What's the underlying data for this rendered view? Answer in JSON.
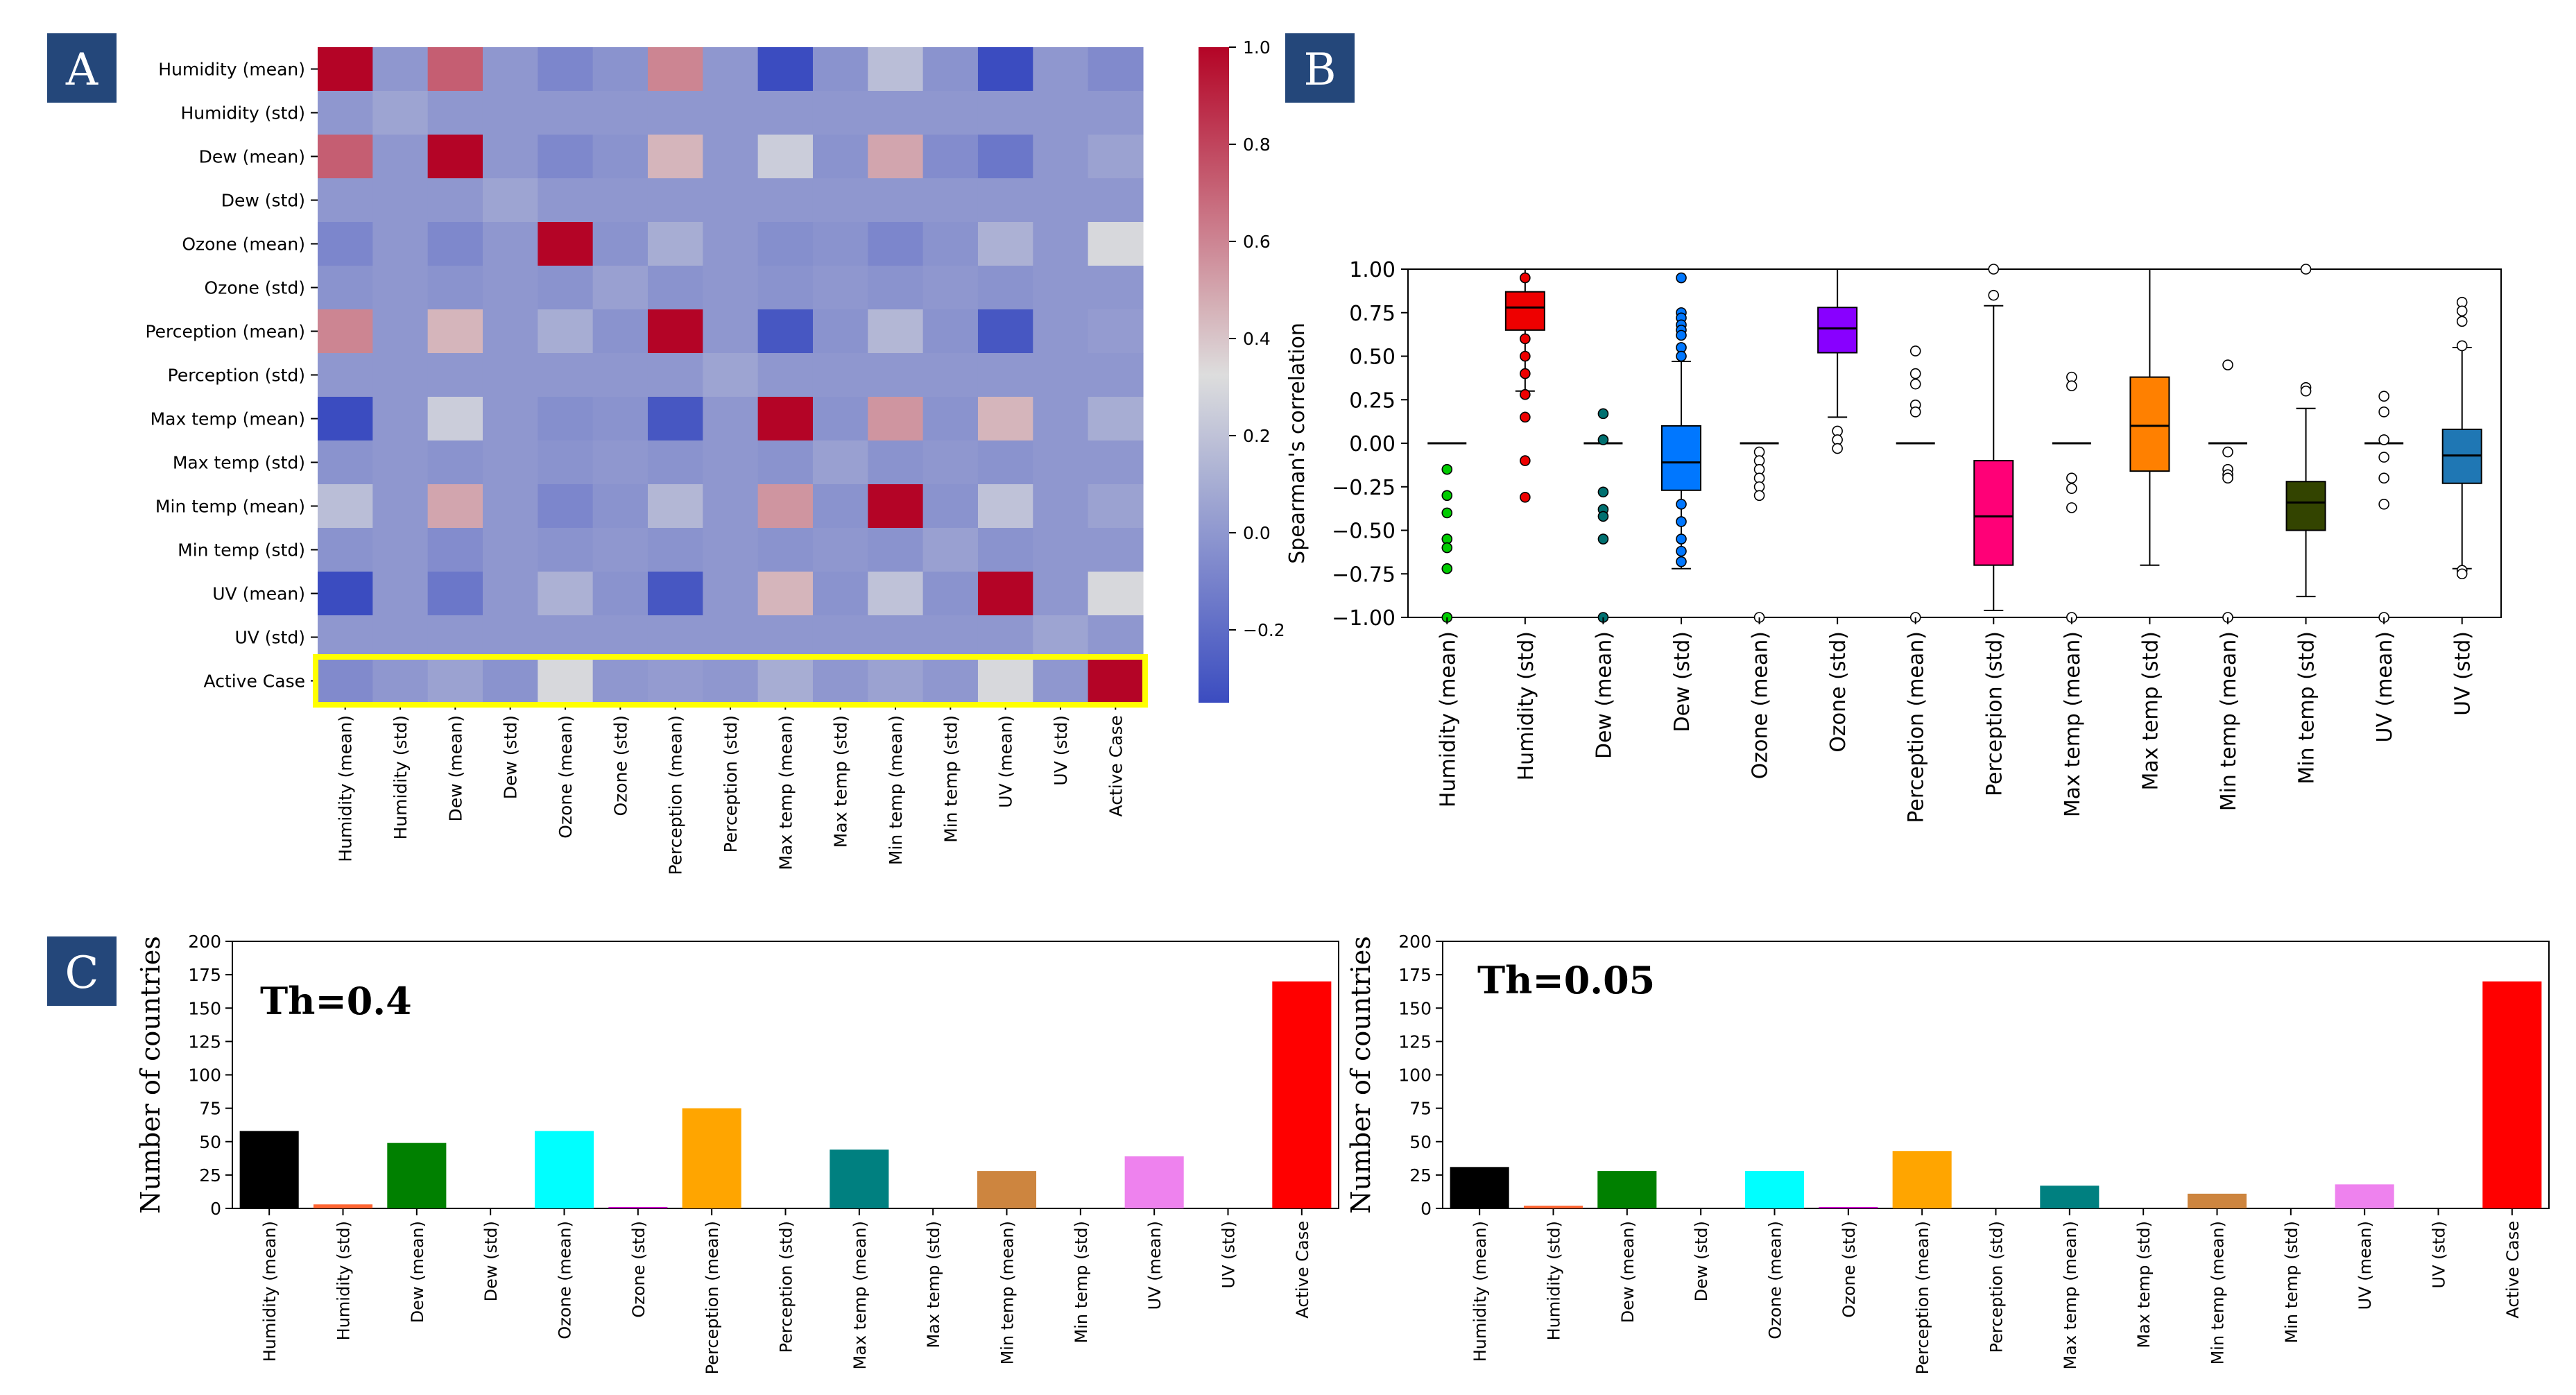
{
  "panel_labels": {
    "a": "A",
    "b": "B",
    "c": "C"
  },
  "colors": {
    "panel_label_bg": "#24477a",
    "highlight_box": "#ffff00",
    "heatmap_low": "#3b4cc0",
    "heatmap_mid": "#dddddd",
    "heatmap_high": "#b40426",
    "box_outlier_default": "#ffffff"
  },
  "chart_data": [
    {
      "id": "heatmap",
      "type": "heatmap",
      "title": "",
      "rows": [
        "Humidity (mean)",
        "Humidity (std)",
        "Dew (mean)",
        "Dew (std)",
        "Ozone (mean)",
        "Ozone (std)",
        "Perception (mean)",
        "Perception (std)",
        "Max temp (mean)",
        "Max temp (std)",
        "Min temp (mean)",
        "Min temp (std)",
        "UV (mean)",
        "UV (std)",
        "Active Case"
      ],
      "columns": [
        "Humidity (mean)",
        "Humidity (std)",
        "Dew (mean)",
        "Dew (std)",
        "Ozone (mean)",
        "Ozone (std)",
        "Perception (mean)",
        "Perception (std)",
        "Max temp (mean)",
        "Max temp (std)",
        "Min temp (mean)",
        "Min temp (std)",
        "UV (mean)",
        "UV (std)",
        "Active Case"
      ],
      "values": [
        [
          1.0,
          0.0,
          0.72,
          0.0,
          -0.08,
          -0.02,
          0.6,
          0.0,
          -0.35,
          -0.02,
          0.18,
          -0.02,
          -0.35,
          0.0,
          -0.06
        ],
        [
          0.0,
          0.06,
          0.0,
          0.0,
          0.0,
          0.0,
          0.0,
          0.0,
          0.0,
          0.0,
          0.0,
          0.0,
          0.0,
          0.0,
          0.0
        ],
        [
          0.72,
          0.0,
          1.0,
          0.0,
          -0.07,
          -0.02,
          0.45,
          0.0,
          0.25,
          -0.02,
          0.5,
          -0.05,
          -0.15,
          0.0,
          0.05
        ],
        [
          0.0,
          0.0,
          0.0,
          0.06,
          0.0,
          0.0,
          0.0,
          0.0,
          0.0,
          0.0,
          0.0,
          0.0,
          0.0,
          0.0,
          0.0
        ],
        [
          -0.08,
          0.0,
          -0.07,
          0.0,
          1.0,
          -0.02,
          0.1,
          0.0,
          -0.04,
          -0.02,
          -0.08,
          -0.02,
          0.12,
          0.0,
          0.3
        ],
        [
          -0.02,
          0.0,
          -0.02,
          0.0,
          -0.02,
          0.04,
          -0.02,
          0.0,
          -0.02,
          0.0,
          -0.02,
          0.0,
          -0.02,
          0.0,
          0.0
        ],
        [
          0.6,
          0.0,
          0.45,
          0.0,
          0.1,
          -0.02,
          1.0,
          0.0,
          -0.3,
          -0.02,
          0.15,
          -0.02,
          -0.3,
          0.0,
          0.02
        ],
        [
          0.0,
          0.0,
          0.0,
          0.0,
          0.0,
          0.0,
          0.0,
          0.06,
          0.0,
          0.0,
          0.0,
          0.0,
          0.0,
          0.0,
          0.0
        ],
        [
          -0.35,
          0.0,
          0.25,
          0.0,
          -0.04,
          -0.02,
          -0.3,
          0.0,
          1.0,
          -0.02,
          0.55,
          -0.02,
          0.45,
          0.0,
          0.1
        ],
        [
          -0.02,
          0.0,
          -0.02,
          0.0,
          -0.02,
          0.0,
          -0.02,
          0.0,
          -0.02,
          0.04,
          -0.02,
          0.0,
          -0.02,
          0.0,
          0.0
        ],
        [
          0.18,
          0.0,
          0.5,
          0.0,
          -0.08,
          -0.02,
          0.15,
          0.0,
          0.55,
          -0.02,
          1.0,
          -0.02,
          0.2,
          0.0,
          0.05
        ],
        [
          -0.02,
          0.0,
          -0.05,
          0.0,
          -0.02,
          0.0,
          -0.02,
          0.0,
          -0.02,
          0.0,
          -0.02,
          0.04,
          -0.02,
          0.0,
          0.0
        ],
        [
          -0.35,
          0.0,
          -0.15,
          0.0,
          0.12,
          -0.02,
          -0.3,
          0.0,
          0.45,
          -0.02,
          0.2,
          -0.02,
          1.0,
          0.0,
          0.3
        ],
        [
          0.0,
          0.0,
          0.0,
          0.0,
          0.0,
          0.0,
          0.0,
          0.0,
          0.0,
          0.0,
          0.0,
          0.0,
          0.0,
          0.06,
          0.0
        ],
        [
          -0.06,
          0.0,
          0.05,
          -0.02,
          0.3,
          0.0,
          0.02,
          0.0,
          0.1,
          0.0,
          0.05,
          0.0,
          0.3,
          0.0,
          1.0
        ]
      ],
      "vmin": -0.35,
      "vmax": 1.0,
      "colorbar_ticks": [
        1.0,
        0.8,
        0.6,
        0.4,
        0.2,
        0.0,
        -0.2
      ],
      "colorbar_tick_labels": [
        "1.0",
        "0.8",
        "0.6",
        "0.4",
        "0.2",
        "0.0",
        "−0.2"
      ],
      "highlighted_row": "Active Case"
    },
    {
      "id": "boxplot",
      "type": "box",
      "ylabel": "Spearman's correlation",
      "ylim": [
        -1.0,
        1.0
      ],
      "yticks": [
        1.0,
        0.75,
        0.5,
        0.25,
        0.0,
        -0.25,
        -0.5,
        -0.75,
        -1.0
      ],
      "ytick_labels": [
        "1.00",
        "0.75",
        "0.50",
        "0.25",
        "0.00",
        "−0.25",
        "−0.50",
        "−0.75",
        "−1.00"
      ],
      "categories": [
        "Humidity (mean)",
        "Humidity (std)",
        "Dew (mean)",
        "Dew (std)",
        "Ozone (mean)",
        "Ozone (std)",
        "Perception (mean)",
        "Perception (std)",
        "Max temp (mean)",
        "Max temp (std)",
        "Min temp (mean)",
        "Min temp (std)",
        "UV (mean)",
        "UV (std)"
      ],
      "series": [
        {
          "name": "Humidity (mean)",
          "color": "#00cc00",
          "q1": 0.0,
          "median": 0.0,
          "q3": 0.0,
          "whisker_low": 0.0,
          "whisker_high": 0.0,
          "outliers": [
            -0.15,
            -0.3,
            -0.4,
            -0.55,
            -0.6,
            -0.72,
            -1.0
          ],
          "outlier_fill": "#00cc00"
        },
        {
          "name": "Humidity (std)",
          "color": "#ee0000",
          "q1": 0.65,
          "median": 0.78,
          "q3": 0.87,
          "whisker_low": 0.3,
          "whisker_high": 1.0,
          "outliers": [
            0.28,
            0.15,
            -0.1,
            -0.31,
            0.95,
            0.6,
            0.5,
            0.4
          ],
          "outlier_fill": "#ee0000"
        },
        {
          "name": "Dew (mean)",
          "color": "#007070",
          "q1": 0.0,
          "median": 0.0,
          "q3": 0.0,
          "whisker_low": 0.0,
          "whisker_high": 0.0,
          "outliers": [
            0.17,
            0.02,
            -0.28,
            -0.38,
            -0.42,
            -0.55,
            -1.0
          ],
          "outlier_fill": "#007070"
        },
        {
          "name": "Dew (std)",
          "color": "#0077ff",
          "q1": -0.27,
          "median": -0.11,
          "q3": 0.1,
          "whisker_low": -0.72,
          "whisker_high": 0.47,
          "outliers": [
            0.95,
            0.75,
            0.72,
            0.68,
            0.65,
            0.62,
            0.55,
            0.5,
            -0.35,
            -0.45,
            -0.55,
            -0.62,
            -0.68
          ],
          "outlier_fill": "#0077ff"
        },
        {
          "name": "Ozone (mean)",
          "color": "#ffffff",
          "q1": 0.0,
          "median": 0.0,
          "q3": 0.0,
          "whisker_low": 0.0,
          "whisker_high": 0.0,
          "outliers": [
            -0.05,
            -0.1,
            -0.15,
            -0.2,
            -0.25,
            -0.3,
            -1.0
          ],
          "outlier_fill": "#ffffff"
        },
        {
          "name": "Ozone (std)",
          "color": "#8800ff",
          "q1": 0.52,
          "median": 0.66,
          "q3": 0.78,
          "whisker_low": 0.15,
          "whisker_high": 1.0,
          "outliers": [
            0.07,
            0.02,
            -0.03
          ],
          "outlier_fill": "#ffffff"
        },
        {
          "name": "Perception (mean)",
          "color": "#ffffff",
          "q1": 0.0,
          "median": 0.0,
          "q3": 0.0,
          "whisker_low": 0.0,
          "whisker_high": 0.0,
          "outliers": [
            0.53,
            0.4,
            0.34,
            0.22,
            0.18,
            -1.0
          ],
          "outlier_fill": "#ffffff"
        },
        {
          "name": "Perception (std)",
          "color": "#ff0077",
          "q1": -0.7,
          "median": -0.42,
          "q3": -0.1,
          "whisker_low": -0.96,
          "whisker_high": 0.79,
          "outliers": [
            0.85,
            1.0
          ],
          "outlier_fill": "#ffffff"
        },
        {
          "name": "Max temp (mean)",
          "color": "#ffffff",
          "q1": 0.0,
          "median": 0.0,
          "q3": 0.0,
          "whisker_low": 0.0,
          "whisker_high": 0.0,
          "outliers": [
            0.38,
            0.33,
            -0.2,
            -0.26,
            -0.37,
            -1.0
          ],
          "outlier_fill": "#ffffff"
        },
        {
          "name": "Max temp (std)",
          "color": "#ff8000",
          "q1": -0.16,
          "median": 0.1,
          "q3": 0.38,
          "whisker_low": -0.7,
          "whisker_high": 1.0,
          "outliers": [],
          "outlier_fill": "#ffffff"
        },
        {
          "name": "Min temp (mean)",
          "color": "#ffffff",
          "q1": 0.0,
          "median": 0.0,
          "q3": 0.0,
          "whisker_low": 0.0,
          "whisker_high": 0.0,
          "outliers": [
            0.45,
            -0.05,
            -0.15,
            -0.18,
            -0.2,
            -1.0
          ],
          "outlier_fill": "#ffffff"
        },
        {
          "name": "Min temp (std)",
          "color": "#334400",
          "q1": -0.5,
          "median": -0.34,
          "q3": -0.22,
          "whisker_low": -0.88,
          "whisker_high": 0.2,
          "outliers": [
            1.0,
            0.32,
            0.3
          ],
          "outlier_fill": "#ffffff"
        },
        {
          "name": "UV (mean)",
          "color": "#ffffff",
          "q1": 0.0,
          "median": 0.0,
          "q3": 0.0,
          "whisker_low": 0.0,
          "whisker_high": 0.0,
          "outliers": [
            0.27,
            0.18,
            0.02,
            -0.08,
            -0.2,
            -0.35,
            -1.0
          ],
          "outlier_fill": "#ffffff"
        },
        {
          "name": "UV (std)",
          "color": "#1f77b4",
          "q1": -0.23,
          "median": -0.07,
          "q3": 0.08,
          "whisker_low": -0.72,
          "whisker_high": 0.55,
          "outliers": [
            0.81,
            0.76,
            0.7,
            0.56,
            -0.73,
            -0.75
          ],
          "outlier_fill": "#ffffff"
        }
      ]
    },
    {
      "id": "bar_th04",
      "type": "bar",
      "annotation": "Th=0.4",
      "ylabel": "Number of countries",
      "ylim": [
        0,
        200
      ],
      "yticks": [
        0,
        25,
        50,
        75,
        100,
        125,
        150,
        175,
        200
      ],
      "categories": [
        "Humidity (mean)",
        "Humidity (std)",
        "Dew (mean)",
        "Dew (std)",
        "Ozone (mean)",
        "Ozone (std)",
        "Perception (mean)",
        "Perception (std)",
        "Max temp (mean)",
        "Max temp (std)",
        "Min temp (mean)",
        "Min temp (std)",
        "UV (mean)",
        "UV (std)",
        "Active Case"
      ],
      "values": [
        58,
        3,
        49,
        0,
        58,
        1,
        75,
        0,
        44,
        0,
        28,
        0,
        39,
        0,
        170
      ],
      "colors": [
        "#000000",
        "#ff6633",
        "#008000",
        "#00ffff",
        "#00ffff",
        "#cc00cc",
        "#ffa500",
        "#008080",
        "#008080",
        "#cd853f",
        "#cd853f",
        "#ee82ee",
        "#ee82ee",
        "#ff0000",
        "#ff0000"
      ]
    },
    {
      "id": "bar_th005",
      "type": "bar",
      "annotation": "Th=0.05",
      "ylabel": "Number of countries",
      "ylim": [
        0,
        200
      ],
      "yticks": [
        0,
        25,
        50,
        75,
        100,
        125,
        150,
        175,
        200
      ],
      "categories": [
        "Humidity (mean)",
        "Humidity (std)",
        "Dew (mean)",
        "Dew (std)",
        "Ozone (mean)",
        "Ozone (std)",
        "Perception (mean)",
        "Perception (std)",
        "Max temp (mean)",
        "Max temp (std)",
        "Min temp (mean)",
        "Min temp (std)",
        "UV (mean)",
        "UV (std)",
        "Active Case"
      ],
      "values": [
        31,
        2,
        28,
        0,
        28,
        1,
        43,
        0,
        17,
        0,
        11,
        0,
        18,
        0,
        170
      ],
      "colors": [
        "#000000",
        "#ff6633",
        "#008000",
        "#00ffff",
        "#00ffff",
        "#cc00cc",
        "#ffa500",
        "#008080",
        "#008080",
        "#cd853f",
        "#cd853f",
        "#ee82ee",
        "#ee82ee",
        "#ff0000",
        "#ff0000"
      ]
    }
  ]
}
